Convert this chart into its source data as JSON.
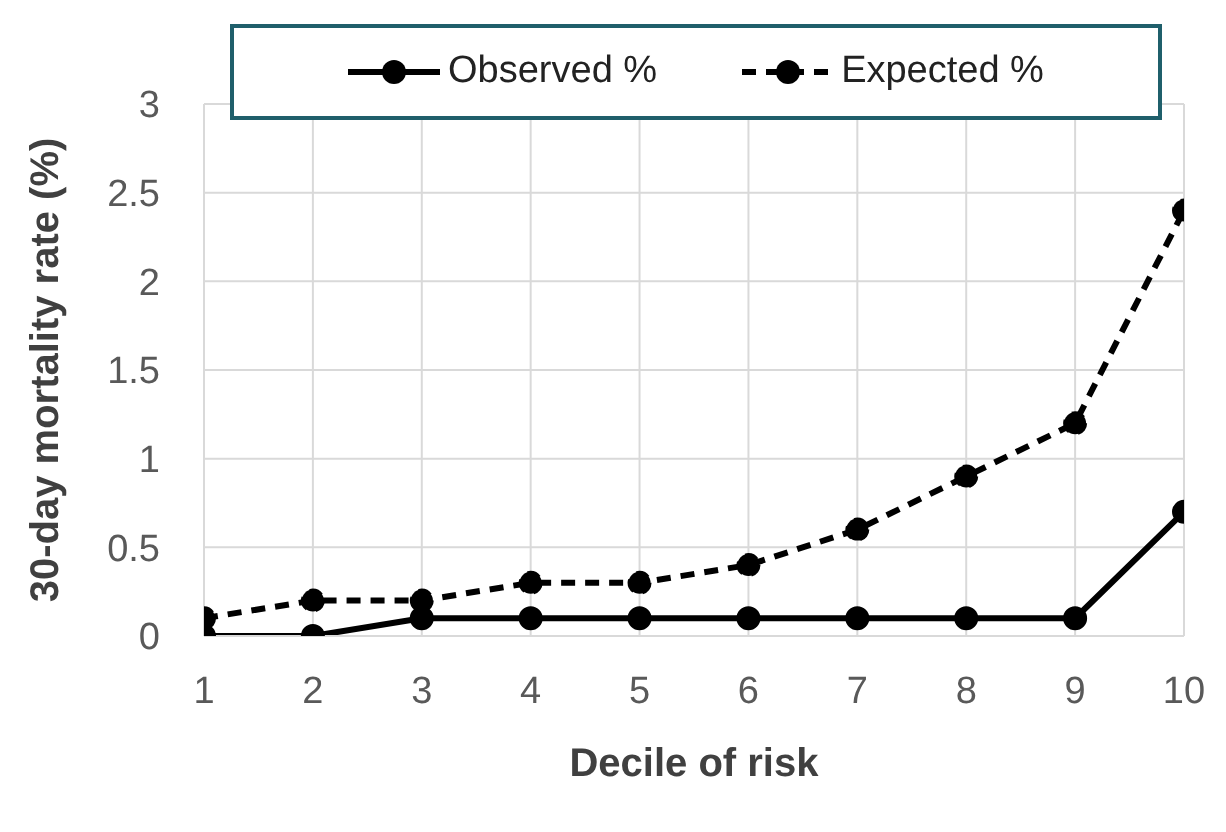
{
  "chart_data": {
    "type": "line",
    "xlabel": "Decile of risk",
    "ylabel": "30-day mortality rate (%)",
    "x": [
      1,
      2,
      3,
      4,
      5,
      6,
      7,
      8,
      9,
      10
    ],
    "xlim": [
      1,
      10
    ],
    "xticks": [
      1,
      2,
      3,
      4,
      5,
      6,
      7,
      8,
      9,
      10
    ],
    "ylim": [
      0,
      3
    ],
    "yticks": [
      0,
      0.5,
      1,
      1.5,
      2,
      2.5,
      3
    ],
    "grid": true,
    "legend": "top",
    "marker": "circle",
    "series": [
      {
        "name": "Observed %",
        "color": "#000000",
        "line_style": "solid",
        "values": [
          0,
          0,
          0.1,
          0.1,
          0.1,
          0.1,
          0.1,
          0.1,
          0.1,
          0.7
        ]
      },
      {
        "name": "Expected %",
        "color": "#000000",
        "line_style": "dashed",
        "values": [
          0.1,
          0.2,
          0.2,
          0.3,
          0.3,
          0.4,
          0.6,
          0.9,
          1.2,
          2.4
        ]
      }
    ]
  }
}
